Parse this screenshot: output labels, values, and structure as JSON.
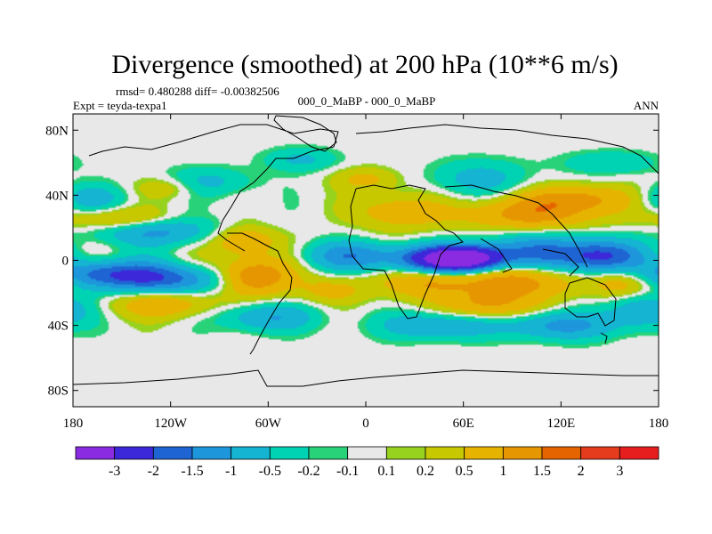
{
  "chart_data": {
    "type": "heatmap",
    "title": "Divergence (smoothed) at 200 hPa (10**6 m/s)",
    "stats_line": "rmsd= 0.480288 diff= -0.00382506",
    "experiment": "Expt = teyda-texpa1",
    "comparison": "000_0_MaBP - 000_0_MaBP",
    "period": "ANN",
    "x_ticks": [
      {
        "value": -180,
        "label": "180"
      },
      {
        "value": -120,
        "label": "120W"
      },
      {
        "value": -60,
        "label": "60W"
      },
      {
        "value": 0,
        "label": "0"
      },
      {
        "value": 60,
        "label": "60E"
      },
      {
        "value": 120,
        "label": "120E"
      },
      {
        "value": 180,
        "label": "180"
      }
    ],
    "y_ticks": [
      {
        "value": 80,
        "label": "80N"
      },
      {
        "value": 40,
        "label": "40N"
      },
      {
        "value": 0,
        "label": "0"
      },
      {
        "value": -40,
        "label": "40S"
      },
      {
        "value": -80,
        "label": "80S"
      }
    ],
    "xlim": [
      -180,
      180
    ],
    "ylim": [
      -90,
      90
    ],
    "colorbar": {
      "colors": [
        "#8a2be2",
        "#3c28d8",
        "#1e64d2",
        "#1e96dc",
        "#14b4d2",
        "#00d2b4",
        "#28d278",
        "#e8e8e8",
        "#96d21e",
        "#c8c800",
        "#e6b400",
        "#e69600",
        "#e66400",
        "#e63c1e",
        "#e61e1e"
      ],
      "labels": [
        "-3",
        "-2",
        "-1.5",
        "-1",
        "-0.5",
        "-0.2",
        "-0.1",
        "0.1",
        "0.2",
        "0.5",
        "1",
        "1.5",
        "2",
        "3"
      ]
    },
    "field_features": [
      {
        "lon": 60,
        "lat": 1,
        "value": -3.2,
        "sx": 16,
        "sy": 5
      },
      {
        "lon": 45,
        "lat": 0,
        "value": -2.2,
        "sx": 24,
        "sy": 6
      },
      {
        "lon": 145,
        "lat": 2,
        "value": -2.0,
        "sx": 18,
        "sy": 7
      },
      {
        "lon": 105,
        "lat": 5,
        "value": -1.4,
        "sx": 25,
        "sy": 8
      },
      {
        "lon": -10,
        "lat": 3,
        "value": -1.2,
        "sx": 20,
        "sy": 6
      },
      {
        "lon": -160,
        "lat": -8,
        "value": -1.6,
        "sx": 28,
        "sy": 6
      },
      {
        "lon": -120,
        "lat": -12,
        "value": -1.4,
        "sx": 30,
        "sy": 6
      },
      {
        "lon": -130,
        "lat": 18,
        "value": -1.2,
        "sx": 25,
        "sy": 6
      },
      {
        "lon": -60,
        "lat": -35,
        "value": -1.0,
        "sx": 20,
        "sy": 6
      },
      {
        "lon": 45,
        "lat": -40,
        "value": -1.0,
        "sx": 25,
        "sy": 6
      },
      {
        "lon": 120,
        "lat": -40,
        "value": -1.2,
        "sx": 22,
        "sy": 6
      },
      {
        "lon": 170,
        "lat": -30,
        "value": -1.0,
        "sx": 15,
        "sy": 8
      },
      {
        "lon": -170,
        "lat": 38,
        "value": -0.8,
        "sx": 15,
        "sy": 6
      },
      {
        "lon": -100,
        "lat": 48,
        "value": -0.7,
        "sx": 20,
        "sy": 6
      },
      {
        "lon": -40,
        "lat": 62,
        "value": -0.6,
        "sx": 15,
        "sy": 5
      },
      {
        "lon": 70,
        "lat": 50,
        "value": -0.7,
        "sx": 20,
        "sy": 8
      },
      {
        "lon": 150,
        "lat": 60,
        "value": -0.5,
        "sx": 20,
        "sy": 5
      },
      {
        "lon": -150,
        "lat": 25,
        "value": 0.9,
        "sx": 22,
        "sy": 5
      },
      {
        "lon": -75,
        "lat": 12,
        "value": 1.0,
        "sx": 14,
        "sy": 6
      },
      {
        "lon": -70,
        "lat": -10,
        "value": 1.8,
        "sx": 16,
        "sy": 8
      },
      {
        "lon": -125,
        "lat": -27,
        "value": 0.9,
        "sx": 22,
        "sy": 6
      },
      {
        "lon": 100,
        "lat": 28,
        "value": 1.2,
        "sx": 30,
        "sy": 7
      },
      {
        "lon": 130,
        "lat": 38,
        "value": 1.1,
        "sx": 25,
        "sy": 6
      },
      {
        "lon": 20,
        "lat": 30,
        "value": 0.8,
        "sx": 20,
        "sy": 8
      },
      {
        "lon": 40,
        "lat": -12,
        "value": 1.2,
        "sx": 20,
        "sy": 8
      },
      {
        "lon": 95,
        "lat": -12,
        "value": 1.4,
        "sx": 22,
        "sy": 8
      },
      {
        "lon": 160,
        "lat": -12,
        "value": 1.2,
        "sx": 15,
        "sy": 8
      },
      {
        "lon": 75,
        "lat": -28,
        "value": 1.0,
        "sx": 20,
        "sy": 6
      },
      {
        "lon": -20,
        "lat": -18,
        "value": 0.7,
        "sx": 15,
        "sy": 6
      },
      {
        "lon": -120,
        "lat": 45,
        "value": 0.6,
        "sx": 15,
        "sy": 5
      },
      {
        "lon": 0,
        "lat": 50,
        "value": 0.6,
        "sx": 14,
        "sy": 5
      }
    ]
  }
}
